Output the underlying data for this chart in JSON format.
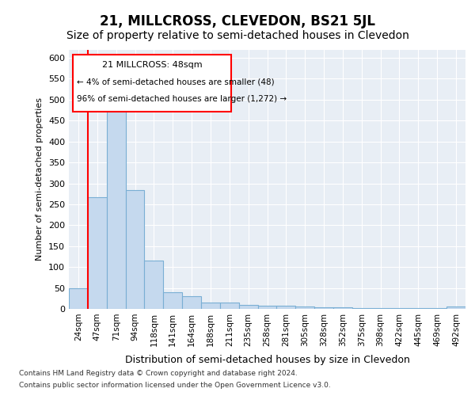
{
  "title": "21, MILLCROSS, CLEVEDON, BS21 5JL",
  "subtitle": "Size of property relative to semi-detached houses in Clevedon",
  "xlabel": "Distribution of semi-detached houses by size in Clevedon",
  "ylabel": "Number of semi-detached properties",
  "categories": [
    "24sqm",
    "47sqm",
    "71sqm",
    "94sqm",
    "118sqm",
    "141sqm",
    "164sqm",
    "188sqm",
    "211sqm",
    "235sqm",
    "258sqm",
    "281sqm",
    "305sqm",
    "328sqm",
    "352sqm",
    "375sqm",
    "398sqm",
    "422sqm",
    "445sqm",
    "469sqm",
    "492sqm"
  ],
  "values": [
    50,
    267,
    498,
    284,
    115,
    40,
    30,
    16,
    15,
    10,
    8,
    7,
    5,
    3,
    3,
    2,
    2,
    1,
    1,
    1,
    5
  ],
  "bar_color": "#c5d9ee",
  "bar_edge_color": "#7aafd4",
  "property_line_x": 1,
  "property_sqm": 48,
  "property_label": "21 MILLCROSS: 48sqm",
  "annotation_line1": "← 4% of semi-detached houses are smaller (48)",
  "annotation_line2": "96% of semi-detached houses are larger (1,272) →",
  "footnote1": "Contains HM Land Registry data © Crown copyright and database right 2024.",
  "footnote2": "Contains public sector information licensed under the Open Government Licence v3.0.",
  "ylim": [
    0,
    620
  ],
  "yticks": [
    0,
    50,
    100,
    150,
    200,
    250,
    300,
    350,
    400,
    450,
    500,
    550,
    600
  ],
  "title_fontsize": 12,
  "subtitle_fontsize": 10,
  "annotation_box_edgecolor": "red",
  "red_line_color": "red",
  "plot_bg_color": "#e8eef5",
  "grid_color": "white"
}
